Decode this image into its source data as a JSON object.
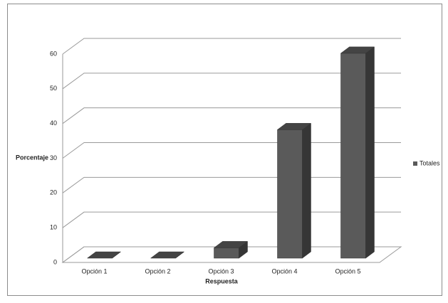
{
  "chart_data": {
    "type": "bar",
    "categories": [
      "Opción 1",
      "Opción 2",
      "Opción 3",
      "Opción 4",
      "Opción 5"
    ],
    "series": [
      {
        "name": "Totales",
        "color": "#5a5a5a",
        "values": [
          0,
          0,
          3,
          37,
          59
        ]
      }
    ],
    "ylim": [
      0,
      60
    ],
    "yticks": [
      0,
      10,
      20,
      30,
      40,
      50,
      60
    ],
    "y_label": "Porcentaje",
    "x_label": "Respuesta",
    "grid": true,
    "legend": "right"
  }
}
